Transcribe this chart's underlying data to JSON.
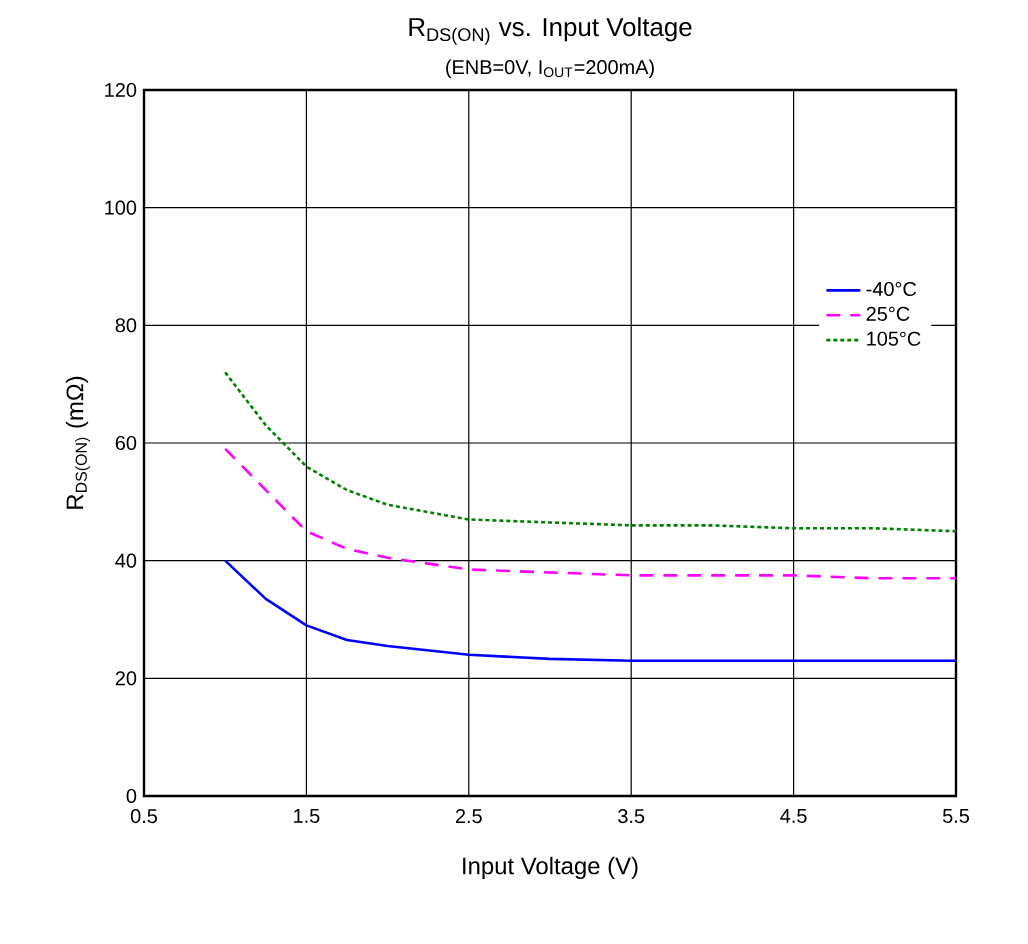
{
  "chart_data": {
    "type": "line",
    "title": "R$_{DS(ON)}$ vs. Input Voltage",
    "subtitle": "(ENB=0V, I$_{OUT}$=200mA)",
    "xlabel": "Input Voltage (V)",
    "ylabel": "R$_{DS(ON)}$ (mΩ)",
    "x": [
      1.0,
      1.25,
      1.5,
      1.75,
      2.0,
      2.5,
      3.0,
      3.5,
      4.0,
      4.5,
      5.0,
      5.5
    ],
    "series": [
      {
        "name": "-40°C",
        "color": "#0000ff",
        "line_style": "solid",
        "values": [
          40,
          33.5,
          29,
          26.5,
          25.5,
          24,
          23.3,
          23,
          23,
          23,
          23,
          23
        ]
      },
      {
        "name": "25°C",
        "color": "#ff00ff",
        "line_style": "dashed",
        "values": [
          59,
          52,
          45,
          42,
          40.5,
          38.5,
          38,
          37.5,
          37.5,
          37.5,
          37,
          37
        ]
      },
      {
        "name": "105°C",
        "color": "#008000",
        "line_style": "dotted",
        "values": [
          72,
          63,
          56,
          52,
          49.5,
          47,
          46.5,
          46,
          46,
          45.5,
          45.5,
          45
        ]
      }
    ],
    "xlim": [
      0.5,
      5.5
    ],
    "ylim": [
      0,
      120
    ],
    "xticks": [
      0.5,
      1.5,
      2.5,
      3.5,
      4.5,
      5.5
    ],
    "yticks": [
      0,
      20,
      40,
      60,
      80,
      100,
      120
    ],
    "grid": true,
    "legend": "top right",
    "marker": "none"
  }
}
